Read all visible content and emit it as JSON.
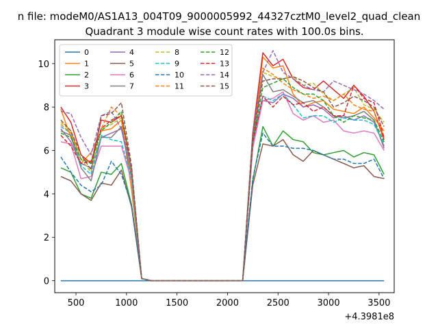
{
  "figure_title": "n file: modeM0/AS1A13_004T09_9000005992_44327cztM0_level2_quad_clean",
  "chart_data": {
    "type": "line",
    "title": "Quadrant 3 module wise count rates with 100.0s bins.",
    "xlabel": "",
    "ylabel": "",
    "x_offset_label": "+4.3981e8",
    "xlim": [
      290,
      3650
    ],
    "ylim": [
      -0.55,
      11.1
    ],
    "x_ticks": [
      500,
      1000,
      1500,
      2000,
      2500,
      3000,
      3500
    ],
    "y_ticks": [
      0,
      2,
      4,
      6,
      8,
      10
    ],
    "grid": false,
    "legend_position": "top-left",
    "legend_columns": 4,
    "x": [
      350,
      450,
      550,
      650,
      750,
      850,
      950,
      1050,
      1150,
      1250,
      1350,
      1450,
      1550,
      1650,
      1750,
      1850,
      1950,
      2050,
      2150,
      2250,
      2350,
      2450,
      2550,
      2650,
      2750,
      2850,
      2950,
      3050,
      3150,
      3250,
      3350,
      3450,
      3550
    ],
    "series": [
      {
        "name": "0",
        "color": "#1f77b4",
        "dash": "solid",
        "values": [
          0,
          0,
          0,
          0,
          0,
          0,
          0,
          0,
          0,
          0,
          0,
          0,
          0,
          0,
          0,
          0,
          0,
          0,
          0,
          0,
          0,
          0,
          0,
          0,
          0,
          0,
          0,
          0,
          0,
          0,
          0,
          0,
          0
        ]
      },
      {
        "name": "1",
        "color": "#ff7f0e",
        "dash": "solid",
        "values": [
          7.9,
          6.6,
          5.4,
          5.9,
          6.9,
          7.0,
          7.4,
          4.2,
          0.1,
          0,
          0,
          0,
          0,
          0,
          0,
          0,
          0,
          0,
          0,
          6.5,
          10.3,
          9.8,
          9.9,
          8.6,
          8.0,
          8.2,
          8.3,
          7.9,
          7.8,
          7.7,
          8.0,
          7.5,
          6.9
        ]
      },
      {
        "name": "2",
        "color": "#2ca02c",
        "dash": "solid",
        "values": [
          5.2,
          5.0,
          4.0,
          3.8,
          5.0,
          4.9,
          5.4,
          3.5,
          0.1,
          0,
          0,
          0,
          0,
          0,
          0,
          0,
          0,
          0,
          0,
          4.6,
          7.1,
          6.2,
          6.9,
          6.5,
          6.4,
          5.9,
          5.8,
          5.9,
          6.0,
          5.7,
          5.9,
          5.8,
          4.9
        ]
      },
      {
        "name": "3",
        "color": "#d62728",
        "dash": "solid",
        "values": [
          8.0,
          7.3,
          5.8,
          5.4,
          7.4,
          7.3,
          7.6,
          5.1,
          0.1,
          0,
          0,
          0,
          0,
          0,
          0,
          0,
          0,
          0,
          0,
          6.8,
          10.5,
          9.9,
          10.2,
          9.3,
          8.9,
          8.8,
          9.2,
          8.8,
          8.4,
          9.0,
          8.5,
          7.8,
          6.5
        ]
      },
      {
        "name": "4",
        "color": "#9467bd",
        "dash": "solid",
        "values": [
          7.0,
          6.4,
          5.4,
          5.2,
          6.6,
          6.8,
          7.0,
          4.8,
          0.1,
          0,
          0,
          0,
          0,
          0,
          0,
          0,
          0,
          0,
          0,
          6.2,
          8.3,
          8.2,
          8.6,
          8.4,
          8.0,
          8.1,
          7.9,
          7.5,
          7.6,
          7.4,
          7.6,
          7.3,
          6.2
        ]
      },
      {
        "name": "5",
        "color": "#8c564b",
        "dash": "solid",
        "values": [
          4.8,
          4.6,
          4.0,
          3.7,
          4.5,
          4.4,
          5.1,
          3.4,
          0.1,
          0,
          0,
          0,
          0,
          0,
          0,
          0,
          0,
          0,
          0,
          4.4,
          6.3,
          6.2,
          6.5,
          5.8,
          5.5,
          6.0,
          5.8,
          5.6,
          5.4,
          5.2,
          5.3,
          4.8,
          4.7
        ]
      },
      {
        "name": "6",
        "color": "#e377c2",
        "dash": "solid",
        "values": [
          6.4,
          6.3,
          4.7,
          4.8,
          6.2,
          6.2,
          6.2,
          4.6,
          0.1,
          0,
          0,
          0,
          0,
          0,
          0,
          0,
          0,
          0,
          0,
          6.1,
          8.3,
          8.4,
          8.7,
          7.7,
          7.4,
          7.6,
          7.3,
          7.4,
          6.9,
          6.8,
          6.9,
          6.8,
          6.0
        ]
      },
      {
        "name": "7",
        "color": "#7f7f7f",
        "dash": "solid",
        "values": [
          6.9,
          6.7,
          5.2,
          4.6,
          6.6,
          6.6,
          7.1,
          4.8,
          0.1,
          0,
          0,
          0,
          0,
          0,
          0,
          0,
          0,
          0,
          0,
          6.3,
          9.5,
          8.7,
          8.8,
          8.5,
          8.2,
          8.3,
          8.0,
          7.6,
          7.5,
          7.6,
          7.8,
          7.4,
          6.1
        ]
      },
      {
        "name": "8",
        "color": "#bcbd22",
        "dash": "dashed",
        "values": [
          7.3,
          6.9,
          5.6,
          5.0,
          7.0,
          7.2,
          7.5,
          5.0,
          0.1,
          0,
          0,
          0,
          0,
          0,
          0,
          0,
          0,
          0,
          0,
          6.6,
          9.6,
          9.4,
          9.3,
          9.4,
          9.0,
          9.1,
          8.6,
          8.3,
          8.6,
          8.9,
          8.1,
          7.9,
          7.3
        ]
      },
      {
        "name": "9",
        "color": "#17becf",
        "dash": "dashed",
        "values": [
          7.1,
          6.8,
          5.3,
          4.9,
          6.7,
          6.5,
          6.4,
          4.7,
          0.1,
          0,
          0,
          0,
          0,
          0,
          0,
          0,
          0,
          0,
          0,
          6.4,
          8.5,
          8.3,
          8.6,
          8.1,
          7.5,
          7.6,
          7.6,
          7.3,
          7.5,
          7.4,
          7.4,
          7.2,
          6.3
        ]
      },
      {
        "name": "10",
        "color": "#1f77b4",
        "dash": "dashed",
        "values": [
          5.7,
          5.0,
          4.4,
          4.1,
          4.4,
          5.5,
          4.9,
          3.5,
          0.1,
          0,
          0,
          0,
          0,
          0,
          0,
          0,
          0,
          0,
          0,
          4.7,
          6.8,
          6.2,
          6.2,
          6.1,
          6.1,
          6.0,
          5.8,
          5.6,
          5.6,
          5.4,
          5.4,
          5.6,
          4.7
        ]
      },
      {
        "name": "11",
        "color": "#ff7f0e",
        "dash": "dashed",
        "values": [
          7.2,
          6.8,
          5.6,
          5.5,
          7.0,
          8.0,
          7.6,
          5.0,
          0.1,
          0,
          0,
          0,
          0,
          0,
          0,
          0,
          0,
          0,
          0,
          6.6,
          9.8,
          9.5,
          9.1,
          8.8,
          8.6,
          8.4,
          8.5,
          8.3,
          8.6,
          8.1,
          7.9,
          7.8,
          6.6
        ]
      },
      {
        "name": "12",
        "color": "#2ca02c",
        "dash": "dashed",
        "values": [
          6.8,
          6.6,
          5.6,
          5.4,
          6.9,
          7.3,
          7.8,
          5.1,
          0.1,
          0,
          0,
          0,
          0,
          0,
          0,
          0,
          0,
          0,
          0,
          6.5,
          8.9,
          9.1,
          9.3,
          8.9,
          8.6,
          8.6,
          8.3,
          7.6,
          7.3,
          7.6,
          7.5,
          7.4,
          6.4
        ]
      },
      {
        "name": "13",
        "color": "#d62728",
        "dash": "dashed",
        "values": [
          6.7,
          6.2,
          5.4,
          5.5,
          7.0,
          7.4,
          7.6,
          5.1,
          0.1,
          0,
          0,
          0,
          0,
          0,
          0,
          0,
          0,
          0,
          0,
          6.4,
          8.5,
          8.0,
          8.5,
          8.1,
          8.2,
          7.8,
          8.0,
          7.6,
          7.6,
          9.0,
          8.4,
          8.2,
          6.6
        ]
      },
      {
        "name": "14",
        "color": "#9467bd",
        "dash": "dashed",
        "values": [
          7.8,
          7.7,
          6.6,
          5.8,
          7.6,
          7.8,
          7.0,
          5.2,
          0.1,
          0,
          0,
          0,
          0,
          0,
          0,
          0,
          0,
          0,
          0,
          6.8,
          9.6,
          10.6,
          9.6,
          9.3,
          9.0,
          8.8,
          8.7,
          9.2,
          9.0,
          8.8,
          8.6,
          8.3,
          7.9
        ]
      },
      {
        "name": "15",
        "color": "#8c564b",
        "dash": "dashed",
        "values": [
          7.4,
          6.9,
          5.8,
          5.1,
          7.6,
          7.7,
          8.2,
          5.3,
          0.1,
          0,
          0,
          0,
          0,
          0,
          0,
          0,
          0,
          0,
          0,
          6.7,
          9.2,
          9.3,
          9.3,
          9.4,
          9.2,
          8.9,
          8.7,
          8.0,
          8.2,
          8.5,
          8.3,
          8.0,
          7.1
        ]
      }
    ]
  }
}
